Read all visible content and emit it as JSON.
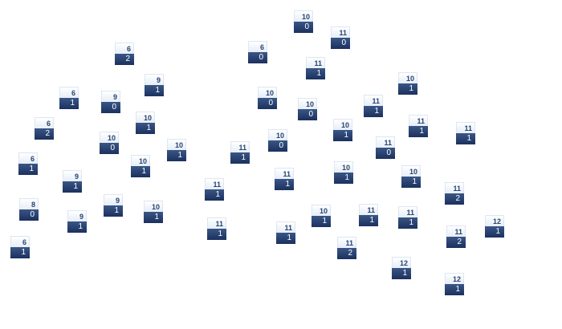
{
  "colors": {
    "node_top": "#eef3fa",
    "node_bottom": "#1f3665",
    "top_text": "#2a4470",
    "bottom_text": "#ffffff"
  },
  "nodes": [
    {
      "top": "6",
      "bottom": "2"
    },
    {
      "top": "9",
      "bottom": "1"
    },
    {
      "top": "6",
      "bottom": "1"
    },
    {
      "top": "9",
      "bottom": "0"
    },
    {
      "top": "10",
      "bottom": "1"
    },
    {
      "top": "6",
      "bottom": "2"
    },
    {
      "top": "10",
      "bottom": "0"
    },
    {
      "top": "10",
      "bottom": "1"
    },
    {
      "top": "10",
      "bottom": "1"
    },
    {
      "top": "6",
      "bottom": "1"
    },
    {
      "top": "9",
      "bottom": "1"
    },
    {
      "top": "8",
      "bottom": "0"
    },
    {
      "top": "9",
      "bottom": "1"
    },
    {
      "top": "10",
      "bottom": "1"
    },
    {
      "top": "9",
      "bottom": "1"
    },
    {
      "top": "6",
      "bottom": "1"
    },
    {
      "top": "10",
      "bottom": "0"
    },
    {
      "top": "11",
      "bottom": "0"
    },
    {
      "top": "6",
      "bottom": "0"
    },
    {
      "top": "11",
      "bottom": "1"
    },
    {
      "top": "10",
      "bottom": "0"
    },
    {
      "top": "10",
      "bottom": "0"
    },
    {
      "top": "11",
      "bottom": "1"
    },
    {
      "top": "10",
      "bottom": "1"
    },
    {
      "top": "10",
      "bottom": "0"
    },
    {
      "top": "11",
      "bottom": "1"
    },
    {
      "top": "11",
      "bottom": "1"
    },
    {
      "top": "10",
      "bottom": "1"
    },
    {
      "top": "11",
      "bottom": "1"
    },
    {
      "top": "10",
      "bottom": "1"
    },
    {
      "top": "11",
      "bottom": "1"
    },
    {
      "top": "11",
      "bottom": "1"
    },
    {
      "top": "11",
      "bottom": "1"
    },
    {
      "top": "11",
      "bottom": "2"
    },
    {
      "top": "10",
      "bottom": "1"
    },
    {
      "top": "11",
      "bottom": "1"
    },
    {
      "top": "11",
      "bottom": "1"
    },
    {
      "top": "11",
      "bottom": "0"
    },
    {
      "top": "10",
      "bottom": "1"
    },
    {
      "top": "11",
      "bottom": "2"
    },
    {
      "top": "11",
      "bottom": "1"
    },
    {
      "top": "12",
      "bottom": "1"
    },
    {
      "top": "11",
      "bottom": "2"
    },
    {
      "top": "12",
      "bottom": "1"
    },
    {
      "top": "12",
      "bottom": "1"
    }
  ]
}
